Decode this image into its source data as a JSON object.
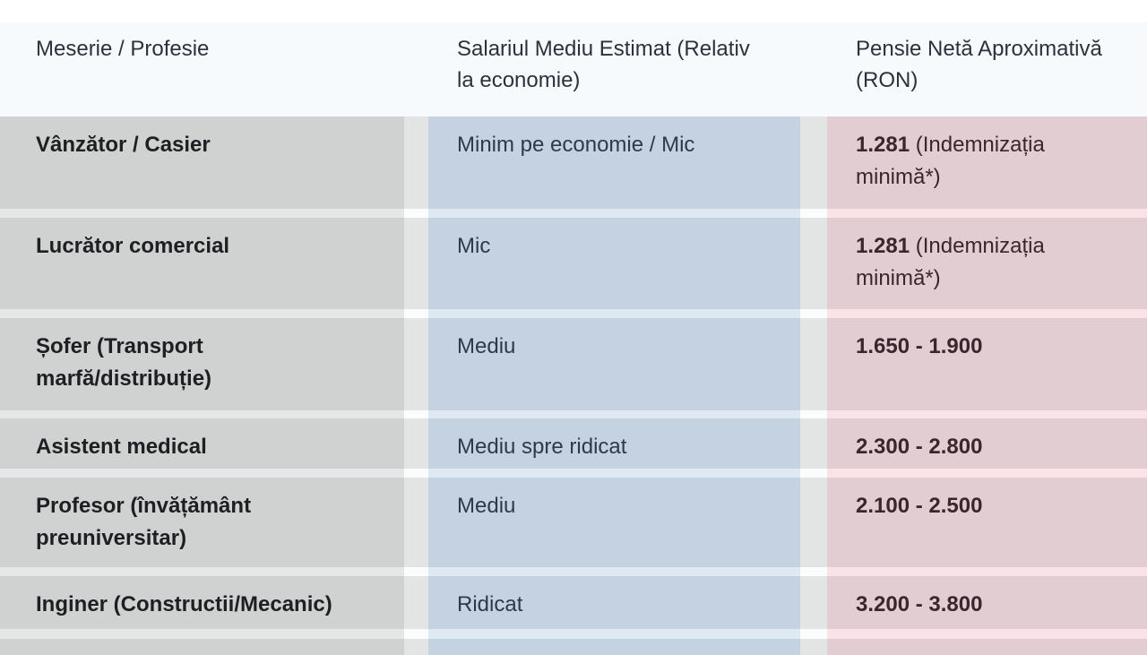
{
  "colors": {
    "header-bg": "#f7fafc",
    "col1-bg": "#d0d1d1",
    "col2-bg": "#c4d2e2",
    "col3-bg": "#e1cdd2",
    "spacer-bg": "#e3e5e5",
    "gap1-bg": "#e4e6e7",
    "gap2-bg": "#dfe9f3",
    "gap3-bg": "#f9e3e7",
    "gap-spacer-bg": "#fbfcfc",
    "header-text": "#2a323d",
    "profession-text": "#1d1f22",
    "salary-text": "#2e3a4a",
    "pension-text": "#3b262e"
  },
  "table": {
    "columns": [
      {
        "line1": "Meserie / Profesie",
        "line2": ""
      },
      {
        "line1": "Salariul Mediu Estimat (Relativ",
        "line2": "la economie)"
      },
      {
        "line1": "Pensie Netă Aproximativă",
        "line2": "(RON)"
      }
    ],
    "rows": [
      {
        "profession_line1": "Vânzător / Casier",
        "profession_line2": "",
        "salary": "Minim pe economie / Mic",
        "pension_value": "1.281",
        "pension_note_line1": "(Indemnizația",
        "pension_note_line2": "minimă*)"
      },
      {
        "profession_line1": "Lucrător comercial",
        "profession_line2": "",
        "salary": "Mic",
        "pension_value": "1.281",
        "pension_note_line1": "(Indemnizația",
        "pension_note_line2": "minimă*)"
      },
      {
        "profession_line1": "Șofer (Transport",
        "profession_line2": "marfă/distribuție)",
        "salary": "Mediu",
        "pension_value": "1.650 - 1.900",
        "pension_note_line1": "",
        "pension_note_line2": ""
      },
      {
        "profession_line1": "Asistent medical",
        "profession_line2": "",
        "salary": "Mediu spre ridicat",
        "pension_value": "2.300 - 2.800",
        "pension_note_line1": "",
        "pension_note_line2": ""
      },
      {
        "profession_line1": "Profesor (învățământ",
        "profession_line2": "preuniversitar)",
        "salary": "Mediu",
        "pension_value": "2.100 - 2.500",
        "pension_note_line1": "",
        "pension_note_line2": ""
      },
      {
        "profession_line1": "Inginer (Constructii/Mecanic)",
        "profession_line2": "",
        "salary": "Ridicat",
        "pension_value": "3.200 - 3.800",
        "pension_note_line1": "",
        "pension_note_line2": ""
      },
      {
        "profession_line1": "",
        "profession_line2": "",
        "salary": "",
        "pension_value": "",
        "pension_note_line1": "",
        "pension_note_line2": ""
      }
    ]
  }
}
